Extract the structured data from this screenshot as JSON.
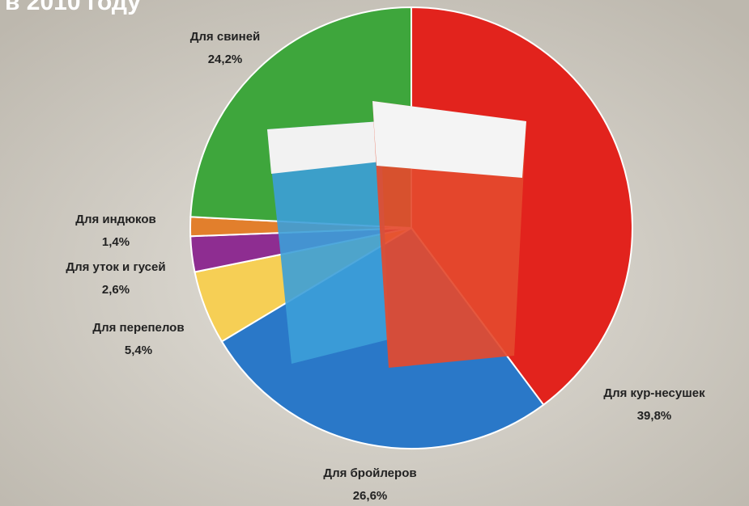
{
  "chart_data": {
    "type": "pie",
    "title": "в 2010 году",
    "categories": [
      "Для кур-несушек",
      "Для бройлеров",
      "Для перепелов",
      "Для уток и гусей",
      "Для индюков",
      "Для свиней"
    ],
    "values": [
      39.8,
      26.6,
      5.4,
      2.6,
      1.4,
      24.2
    ],
    "value_labels": [
      "39,8%",
      "26,6%",
      "5,4%",
      "2,6%",
      "1,4%",
      "24,2%"
    ],
    "colors": [
      "#e2231d",
      "#2a78c8",
      "#f6cf55",
      "#8e2d91",
      "#e27f2c",
      "#3ea63c"
    ]
  }
}
